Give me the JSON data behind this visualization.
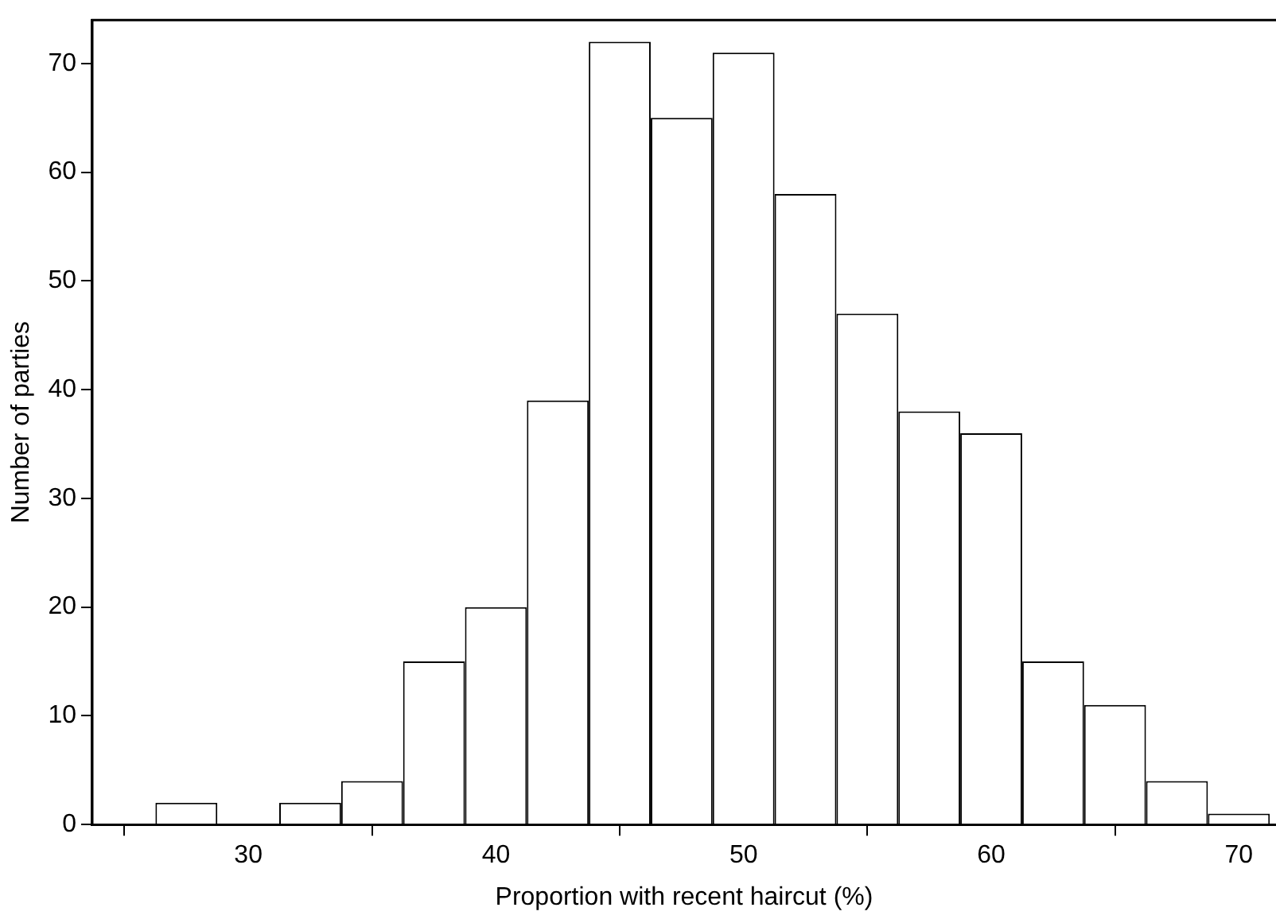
{
  "chart_data": {
    "type": "histogram",
    "xlabel": "Proportion with recent haircut (%)",
    "ylabel": "Number of parties",
    "bins": [
      26.25,
      28.75,
      31.25,
      33.75,
      36.25,
      38.75,
      41.25,
      43.75,
      46.25,
      48.75,
      51.25,
      53.75,
      56.25,
      58.75,
      61.25,
      63.75,
      66.25,
      68.75,
      71.25
    ],
    "values": [
      2,
      0,
      2,
      4,
      15,
      20,
      39,
      72,
      65,
      71,
      58,
      47,
      38,
      36,
      15,
      11,
      4,
      1
    ],
    "color": "#ffffff",
    "xlim": [
      23.7,
      71.5
    ],
    "xticks": [
      30,
      40,
      50,
      60,
      70
    ],
    "ylim": [
      0,
      74
    ],
    "yticks": [
      0,
      10,
      20,
      30,
      40,
      50,
      60,
      70
    ],
    "grid": false,
    "legend": false
  }
}
